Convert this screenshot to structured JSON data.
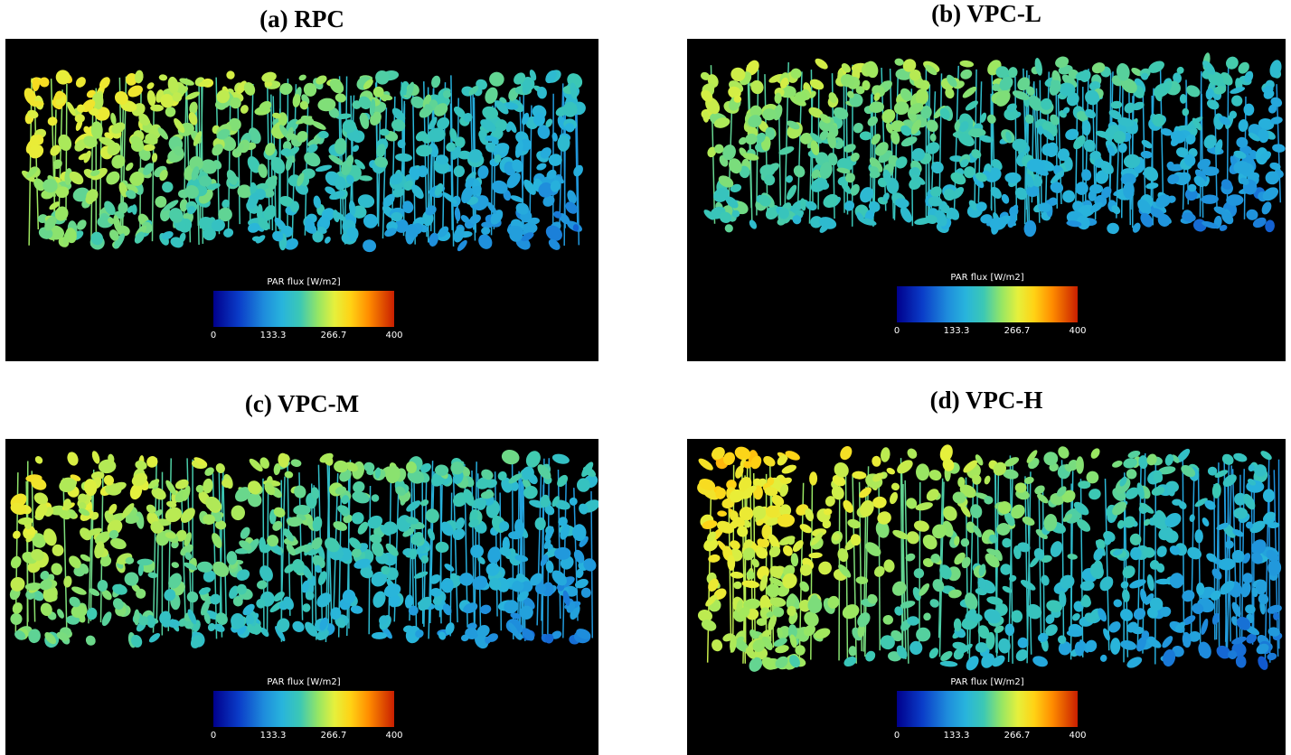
{
  "panels": [
    {
      "title": "(a) RPC"
    },
    {
      "title": "(b) VPC-L"
    },
    {
      "title": "(c) VPC-M"
    },
    {
      "title": "(d) VPC-H"
    }
  ],
  "legend": {
    "title": "PAR flux [W/m2]",
    "ticks": [
      "0",
      "133.3",
      "266.7",
      "400"
    ],
    "range": [
      0,
      400
    ]
  },
  "colors": {
    "background": "#000000",
    "colormap": [
      "#00008c",
      "#0a3cc8",
      "#1e8cdc",
      "#28b4dc",
      "#3cc8b4",
      "#96e664",
      "#e6f03c",
      "#ffd214",
      "#ff8c00",
      "#c81e00"
    ]
  }
}
